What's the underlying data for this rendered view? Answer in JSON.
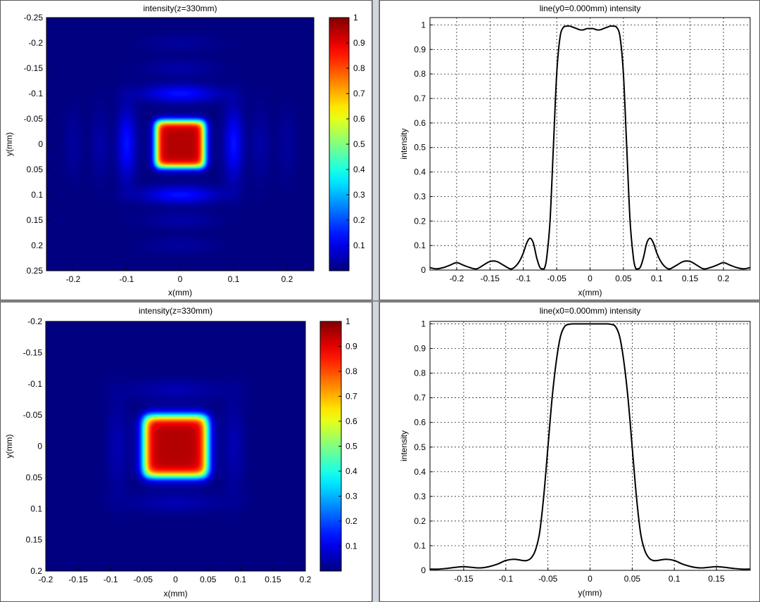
{
  "chart_data": [
    {
      "type": "heatmap",
      "title": "intensity(z=330mm)",
      "xlabel": "x(mm)",
      "ylabel": "y(mm)",
      "xlim": [
        -0.25,
        0.25
      ],
      "ylim": [
        -0.25,
        0.25
      ],
      "xticks": [
        "-0.2",
        "-0.1",
        "0",
        "0.1",
        "0.2"
      ],
      "xtick_values": [
        -0.2,
        -0.1,
        0,
        0.1,
        0.2
      ],
      "yticks": [
        "-0.25",
        "-0.2",
        "-0.15",
        "-0.1",
        "-0.05",
        "0",
        "0.05",
        "0.1",
        "0.15",
        "0.2",
        "0.25"
      ],
      "ytick_values": [
        -0.25,
        -0.2,
        -0.15,
        -0.1,
        -0.05,
        0,
        0.05,
        0.1,
        0.15,
        0.2,
        0.25
      ],
      "y_reversed": true,
      "colormap": "jet",
      "colorbar": {
        "range": [
          0,
          1
        ],
        "ticks": [
          "0.1",
          "0.2",
          "0.3",
          "0.4",
          "0.5",
          "0.6",
          "0.7",
          "0.8",
          "0.9",
          "1"
        ],
        "tick_values": [
          0.1,
          0.2,
          0.3,
          0.4,
          0.5,
          0.6,
          0.7,
          0.8,
          0.9,
          1
        ]
      },
      "spot": {
        "center": [
          0,
          0
        ],
        "half_width": 0.045,
        "peak": 1.0
      },
      "side_lobes": [
        {
          "x": 0,
          "y": -0.1,
          "value": 0.15
        },
        {
          "x": 0,
          "y": 0.1,
          "value": 0.15
        },
        {
          "x": -0.1,
          "y": 0,
          "value": 0.15
        },
        {
          "x": 0.1,
          "y": 0,
          "value": 0.15
        },
        {
          "x": 0,
          "y": -0.15,
          "value": 0.04
        },
        {
          "x": 0,
          "y": 0.15,
          "value": 0.04
        },
        {
          "x": -0.15,
          "y": 0,
          "value": 0.04
        },
        {
          "x": 0.15,
          "y": 0,
          "value": 0.04
        },
        {
          "x": 0,
          "y": -0.2,
          "value": 0.03
        },
        {
          "x": 0,
          "y": 0.2,
          "value": 0.03
        },
        {
          "x": -0.2,
          "y": 0,
          "value": 0.03
        },
        {
          "x": 0.2,
          "y": 0,
          "value": 0.03
        }
      ],
      "grid": false
    },
    {
      "type": "line",
      "title": "line(y0=0.000mm) intensity",
      "xlabel": "x(mm)",
      "ylabel": "intensity",
      "xlim": [
        -0.24,
        0.24
      ],
      "ylim": [
        0,
        1.03
      ],
      "xticks": [
        "-0.2",
        "-0.15",
        "-0.1",
        "-0.05",
        "0",
        "0.05",
        "0.1",
        "0.15",
        "0.2"
      ],
      "xtick_values": [
        -0.2,
        -0.15,
        -0.1,
        -0.05,
        0,
        0.05,
        0.1,
        0.15,
        0.2
      ],
      "yticks": [
        "0",
        "0.1",
        "0.2",
        "0.3",
        "0.4",
        "0.5",
        "0.6",
        "0.7",
        "0.8",
        "0.9",
        "1"
      ],
      "ytick_values": [
        0,
        0.1,
        0.2,
        0.3,
        0.4,
        0.5,
        0.6,
        0.7,
        0.8,
        0.9,
        1
      ],
      "grid": true,
      "series": [
        {
          "x": [
            -0.24,
            -0.23,
            -0.22,
            -0.21,
            -0.2,
            -0.19,
            -0.18,
            -0.17,
            -0.16,
            -0.15,
            -0.14,
            -0.13,
            -0.12,
            -0.115,
            -0.11,
            -0.105,
            -0.1,
            -0.095,
            -0.09,
            -0.085,
            -0.08,
            -0.075,
            -0.07,
            -0.068,
            -0.065,
            -0.06,
            -0.055,
            -0.05,
            -0.045,
            -0.04,
            -0.035,
            -0.03,
            -0.025,
            -0.02,
            -0.015,
            -0.01,
            -0.005,
            0,
            0.005,
            0.01,
            0.015,
            0.02,
            0.025,
            0.03,
            0.035,
            0.04,
            0.045,
            0.05,
            0.055,
            0.06,
            0.065,
            0.068,
            0.07,
            0.075,
            0.08,
            0.085,
            0.09,
            0.095,
            0.1,
            0.105,
            0.11,
            0.115,
            0.12,
            0.13,
            0.14,
            0.15,
            0.16,
            0.17,
            0.18,
            0.19,
            0.2,
            0.21,
            0.22,
            0.23,
            0.24
          ],
          "values": [
            0.01,
            0.005,
            0.01,
            0.02,
            0.03,
            0.02,
            0.01,
            0.005,
            0.02,
            0.035,
            0.035,
            0.02,
            0.005,
            0.008,
            0.02,
            0.04,
            0.07,
            0.11,
            0.13,
            0.11,
            0.05,
            0.01,
            0.005,
            0.01,
            0.05,
            0.2,
            0.5,
            0.8,
            0.95,
            0.99,
            0.995,
            0.995,
            0.99,
            0.985,
            0.98,
            0.98,
            0.985,
            0.985,
            0.985,
            0.98,
            0.98,
            0.985,
            0.99,
            0.995,
            0.995,
            0.99,
            0.95,
            0.8,
            0.5,
            0.2,
            0.05,
            0.01,
            0.005,
            0.01,
            0.05,
            0.11,
            0.13,
            0.11,
            0.07,
            0.04,
            0.02,
            0.008,
            0.005,
            0.02,
            0.035,
            0.035,
            0.02,
            0.005,
            0.01,
            0.02,
            0.03,
            0.02,
            0.01,
            0.005,
            0.01
          ]
        }
      ]
    },
    {
      "type": "heatmap",
      "title": "intensity(z=330mm)",
      "xlabel": "x(mm)",
      "ylabel": "y(mm)",
      "xlim": [
        -0.2,
        0.2
      ],
      "ylim": [
        -0.2,
        0.2
      ],
      "xticks": [
        "-0.2",
        "-0.15",
        "-0.1",
        "-0.05",
        "0",
        "0.05",
        "0.1",
        "0.15",
        "0.2"
      ],
      "xtick_values": [
        -0.2,
        -0.15,
        -0.1,
        -0.05,
        0,
        0.05,
        0.1,
        0.15,
        0.2
      ],
      "yticks": [
        "-0.2",
        "-0.15",
        "-0.1",
        "-0.05",
        "0",
        "0.05",
        "0.1",
        "0.15",
        "0.2"
      ],
      "ytick_values": [
        -0.2,
        -0.15,
        -0.1,
        -0.05,
        0,
        0.05,
        0.1,
        0.15,
        0.2
      ],
      "y_reversed": true,
      "colormap": "jet",
      "colorbar": {
        "range": [
          0,
          1
        ],
        "ticks": [
          "0.1",
          "0.2",
          "0.3",
          "0.4",
          "0.5",
          "0.6",
          "0.7",
          "0.8",
          "0.9",
          "1"
        ],
        "tick_values": [
          0.1,
          0.2,
          0.3,
          0.4,
          0.5,
          0.6,
          0.7,
          0.8,
          0.9,
          1
        ]
      },
      "spot": {
        "center": [
          0,
          0
        ],
        "half_width": 0.048,
        "peak": 1.0
      },
      "side_lobes": [
        {
          "x": 0,
          "y": -0.09,
          "value": 0.05
        },
        {
          "x": 0,
          "y": 0.09,
          "value": 0.05
        },
        {
          "x": -0.09,
          "y": 0,
          "value": 0.05
        },
        {
          "x": 0.09,
          "y": 0,
          "value": 0.05
        }
      ],
      "grid": false
    },
    {
      "type": "line",
      "title": "line(x0=0.000mm) intensity",
      "xlabel": "y(mm)",
      "ylabel": "intensity",
      "xlim": [
        -0.19,
        0.19
      ],
      "ylim": [
        0,
        1.01
      ],
      "xticks": [
        "-0.15",
        "-0.1",
        "-0.05",
        "0",
        "0.05",
        "0.1",
        "0.15"
      ],
      "xtick_values": [
        -0.15,
        -0.1,
        -0.05,
        0,
        0.05,
        0.1,
        0.15
      ],
      "yticks": [
        "0",
        "0.1",
        "0.2",
        "0.3",
        "0.4",
        "0.5",
        "0.6",
        "0.7",
        "0.8",
        "0.9",
        "1"
      ],
      "ytick_values": [
        0,
        0.1,
        0.2,
        0.3,
        0.4,
        0.5,
        0.6,
        0.7,
        0.8,
        0.9,
        1
      ],
      "grid": true,
      "series": [
        {
          "x": [
            -0.19,
            -0.18,
            -0.17,
            -0.16,
            -0.15,
            -0.14,
            -0.13,
            -0.12,
            -0.11,
            -0.1,
            -0.09,
            -0.08,
            -0.075,
            -0.07,
            -0.065,
            -0.06,
            -0.055,
            -0.05,
            -0.045,
            -0.04,
            -0.035,
            -0.03,
            -0.025,
            -0.02,
            -0.01,
            0,
            0.01,
            0.02,
            0.025,
            0.03,
            0.035,
            0.04,
            0.045,
            0.05,
            0.055,
            0.06,
            0.065,
            0.07,
            0.075,
            0.08,
            0.09,
            0.1,
            0.11,
            0.12,
            0.13,
            0.14,
            0.15,
            0.16,
            0.17,
            0.18,
            0.19
          ],
          "values": [
            0.005,
            0.005,
            0.008,
            0.012,
            0.015,
            0.012,
            0.01,
            0.015,
            0.025,
            0.04,
            0.045,
            0.04,
            0.04,
            0.05,
            0.08,
            0.15,
            0.3,
            0.5,
            0.7,
            0.85,
            0.95,
            0.99,
            0.998,
            1.0,
            1.0,
            1.0,
            1.0,
            1.0,
            0.998,
            0.99,
            0.95,
            0.85,
            0.7,
            0.5,
            0.3,
            0.15,
            0.08,
            0.05,
            0.04,
            0.04,
            0.045,
            0.04,
            0.025,
            0.015,
            0.01,
            0.012,
            0.015,
            0.012,
            0.008,
            0.005,
            0.005
          ]
        }
      ]
    }
  ]
}
